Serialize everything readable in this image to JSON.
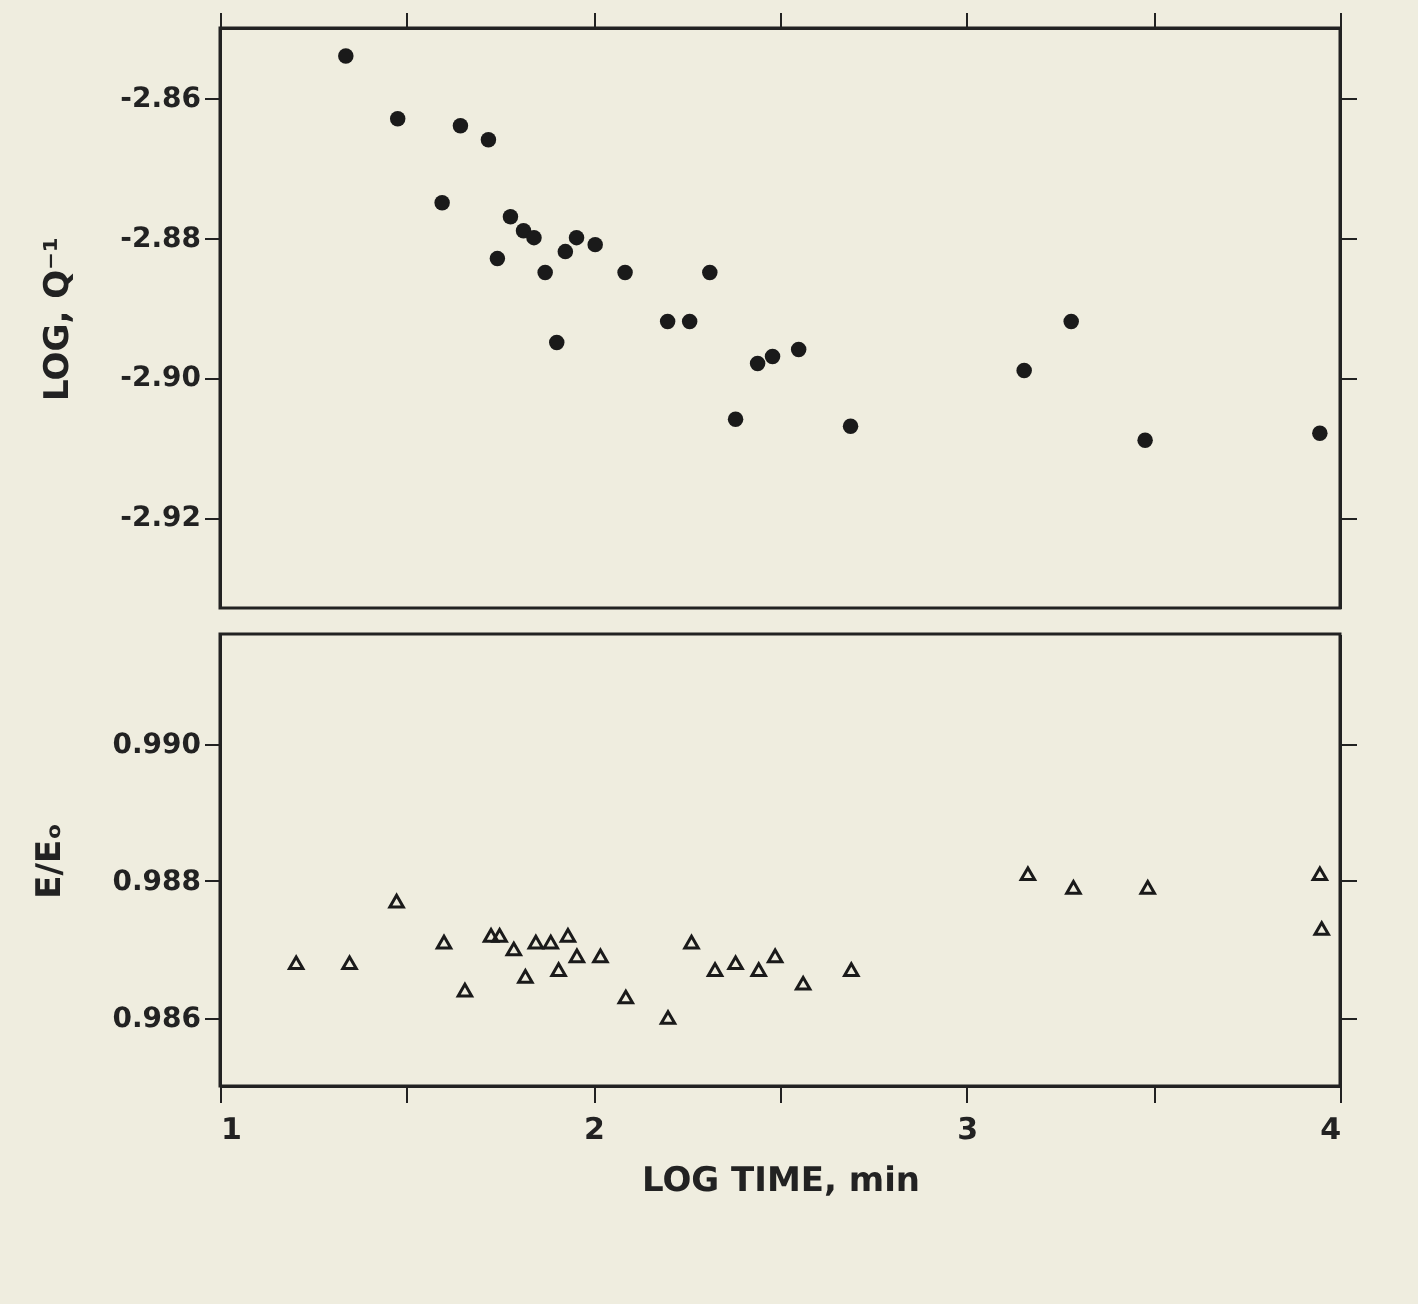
{
  "chart_data": [
    {
      "type": "scatter",
      "ylabel": "LOG, Q⁻¹",
      "marker": "circle",
      "tick_labels": "y",
      "xlim": [
        1,
        4
      ],
      "xticks": [
        {
          "value": 1,
          "label": null
        },
        {
          "value": 1.5,
          "label": null
        },
        {
          "value": 2,
          "label": null
        },
        {
          "value": 2.5,
          "label": null
        },
        {
          "value": 3,
          "label": null
        },
        {
          "value": 3.5,
          "label": null
        },
        {
          "value": 4,
          "label": null
        }
      ],
      "ylim": [
        -2.933,
        -2.85
      ],
      "yticks": [
        -2.92,
        {
          "value": -2.9,
          "label": "-2.90"
        },
        -2.88,
        -2.86
      ],
      "series": [
        {
          "color": "#1a1a1a",
          "x": [
            1.337,
            1.476,
            1.644,
            1.719,
            1.595,
            1.778,
            1.813,
            1.841,
            1.743,
            1.955,
            2.005,
            1.925,
            1.871,
            1.902,
            2.085,
            2.312,
            2.199,
            2.258,
            2.381,
            2.44,
            2.48,
            2.55,
            2.689,
            3.154,
            3.28,
            3.478,
            3.946
          ],
          "values": [
            -2.854,
            -2.863,
            -2.864,
            -2.866,
            -2.875,
            -2.877,
            -2.879,
            -2.88,
            -2.883,
            -2.88,
            -2.881,
            -2.882,
            -2.885,
            -2.895,
            -2.885,
            -2.885,
            -2.892,
            -2.892,
            -2.906,
            -2.898,
            -2.897,
            -2.896,
            -2.907,
            -2.899,
            -2.892,
            -2.909,
            -2.908
          ]
        }
      ]
    },
    {
      "type": "scatter",
      "xlabel": "LOG TIME, min",
      "ylabel": "E/Eₒ",
      "marker": "triangle",
      "xlim": [
        1,
        4
      ],
      "xticks": [
        1,
        {
          "value": 1.5,
          "label": null
        },
        2,
        {
          "value": 2.5,
          "label": null
        },
        3,
        {
          "value": 3.5,
          "label": null
        },
        4
      ],
      "ylim": [
        0.985,
        0.9916
      ],
      "yticks": [
        0.986,
        0.988,
        {
          "value": 0.99,
          "label": "0.990"
        }
      ],
      "series": [
        {
          "color": "#1a1a1a",
          "x": [
            1.204,
            1.347,
            1.473,
            1.6,
            1.656,
            1.726,
            1.749,
            1.787,
            1.818,
            1.846,
            1.886,
            1.907,
            1.932,
            1.956,
            2.019,
            2.087,
            2.2,
            2.263,
            2.326,
            2.381,
            2.443,
            2.487,
            2.562,
            2.691,
            3.164,
            3.286,
            3.485,
            3.946,
            3.951
          ],
          "values": [
            0.9868,
            0.9868,
            0.9877,
            0.9871,
            0.9864,
            0.9872,
            0.9872,
            0.987,
            0.9866,
            0.9871,
            0.9871,
            0.9867,
            0.9872,
            0.9869,
            0.9869,
            0.9863,
            0.986,
            0.9871,
            0.9867,
            0.9868,
            0.9867,
            0.9869,
            0.9865,
            0.9867,
            0.9881,
            0.9879,
            0.9879,
            0.9881,
            0.9873
          ]
        }
      ]
    }
  ]
}
